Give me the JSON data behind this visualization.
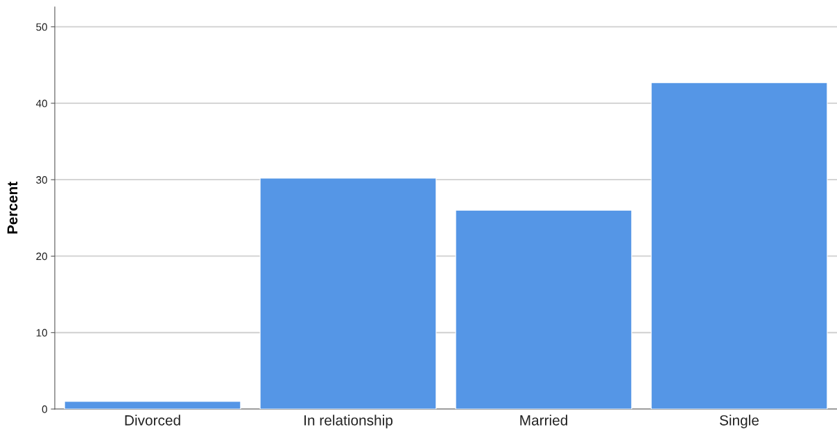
{
  "chart_data": {
    "type": "bar",
    "ylabel": "Percent",
    "categories": [
      "Divorced",
      "In relationship",
      "Married",
      "Single"
    ],
    "values": [
      1.0,
      30.2,
      26.0,
      42.7
    ],
    "color": "#5596e6",
    "ylim": [
      0,
      52.6
    ],
    "yticks": [
      0,
      10,
      20,
      30,
      40,
      50
    ],
    "grid": "y"
  }
}
